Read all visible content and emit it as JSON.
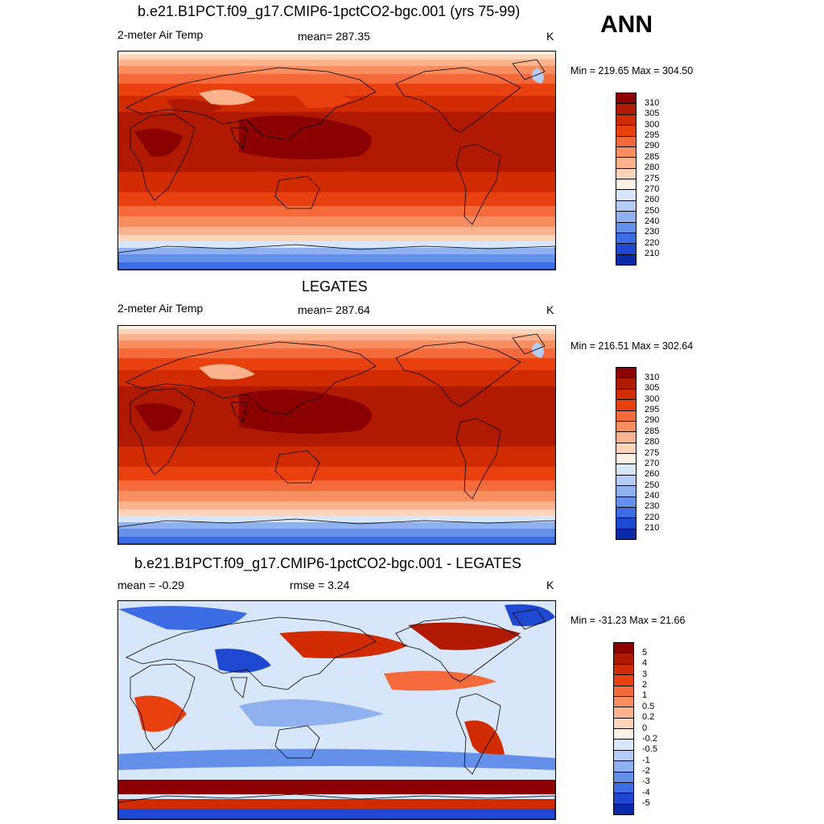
{
  "season": "ANN",
  "panels": [
    {
      "id": "model",
      "title": "b.e21.B1PCT.f09_g17.CMIP6-1pctCO2-bgc.001 (yrs 75-99)",
      "left_label": "2-meter Air Temp",
      "center_label": "mean= 287.35",
      "units": "K",
      "minmax": "Min = 219.65 Max = 304.50",
      "type": "abs"
    },
    {
      "id": "obs",
      "title": "LEGATES",
      "left_label": "2-meter Air Temp",
      "center_label": "mean= 287.64",
      "units": "K",
      "minmax": "Min = 216.51 Max = 302.64",
      "type": "abs"
    },
    {
      "id": "diff",
      "title": "b.e21.B1PCT.f09_g17.CMIP6-1pctCO2-bgc.001 - LEGATES",
      "left_label": "mean =  -0.29",
      "center_label": "rmse =   3.24",
      "units": "K",
      "minmax": "Min = -31.23 Max =  21.66",
      "type": "diff"
    }
  ],
  "colorbar_abs": {
    "labels": [
      "310",
      "305",
      "300",
      "295",
      "290",
      "285",
      "280",
      "275",
      "270",
      "260",
      "250",
      "240",
      "230",
      "220",
      "210"
    ],
    "colors": [
      "#8b0000",
      "#b01a00",
      "#d02c00",
      "#e8400e",
      "#f46a3a",
      "#f88e60",
      "#fbb28d",
      "#fdd4b8",
      "#fdf0e4",
      "#d7e6fb",
      "#b5cdf6",
      "#8fb1f0",
      "#6490ea",
      "#3c6ce4",
      "#1f48d0",
      "#0b2aa8"
    ]
  },
  "colorbar_diff": {
    "labels": [
      "5",
      "4",
      "3",
      "2",
      "1",
      "0.5",
      "0.2",
      "0",
      "-0.2",
      "-0.5",
      "-1",
      "-2",
      "-3",
      "-4",
      "-5"
    ],
    "colors": [
      "#8b0000",
      "#b01a00",
      "#d02c00",
      "#e8400e",
      "#f46a3a",
      "#f88e60",
      "#fbb28d",
      "#fdd4b8",
      "#fdf0e4",
      "#d7e6fb",
      "#b5cdf6",
      "#8fb1f0",
      "#6490ea",
      "#3c6ce4",
      "#1f48d0",
      "#0b2aa8"
    ]
  }
}
